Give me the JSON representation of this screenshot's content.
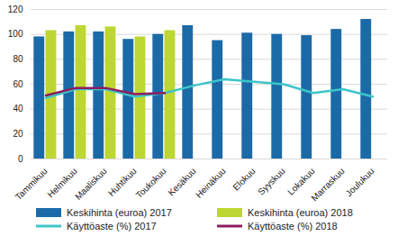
{
  "chart_data": {
    "type": "bar",
    "categories": [
      "Tammikuu",
      "Helmikuu",
      "Maaliskuu",
      "Huhtikuu",
      "Toukokuu",
      "Kesäkuu",
      "Heinäkuu",
      "Elokuu",
      "Syyskuu",
      "Lokakuu",
      "Marraskuu",
      "Joulukuu"
    ],
    "series": [
      {
        "name": "Keskihinta (euroa) 2017",
        "type": "bar",
        "color": "#1b6aa8",
        "values": [
          98,
          102,
          102,
          96,
          100,
          107,
          95,
          101,
          100,
          99,
          104,
          112
        ]
      },
      {
        "name": "Keskihinta (euroa) 2018",
        "type": "bar",
        "color": "#bdd631",
        "values": [
          103,
          107,
          106,
          98,
          103,
          null,
          null,
          null,
          null,
          null,
          null,
          null
        ]
      },
      {
        "name": "Käyttöaste (%) 2017",
        "type": "line",
        "color": "#3cc6c9",
        "values": [
          49,
          56,
          56,
          50,
          53,
          59,
          64,
          62,
          60,
          53,
          56,
          50
        ]
      },
      {
        "name": "Käyttöaste (%) 2018",
        "type": "line",
        "color": "#8e1c5e",
        "values": [
          51,
          57,
          57,
          52,
          53,
          null,
          null,
          null,
          null,
          null,
          null,
          null
        ]
      }
    ],
    "ylim": [
      0,
      120
    ],
    "yticks": [
      0,
      20,
      40,
      60,
      80,
      100,
      120
    ],
    "grid": true,
    "legend": "bottom"
  }
}
